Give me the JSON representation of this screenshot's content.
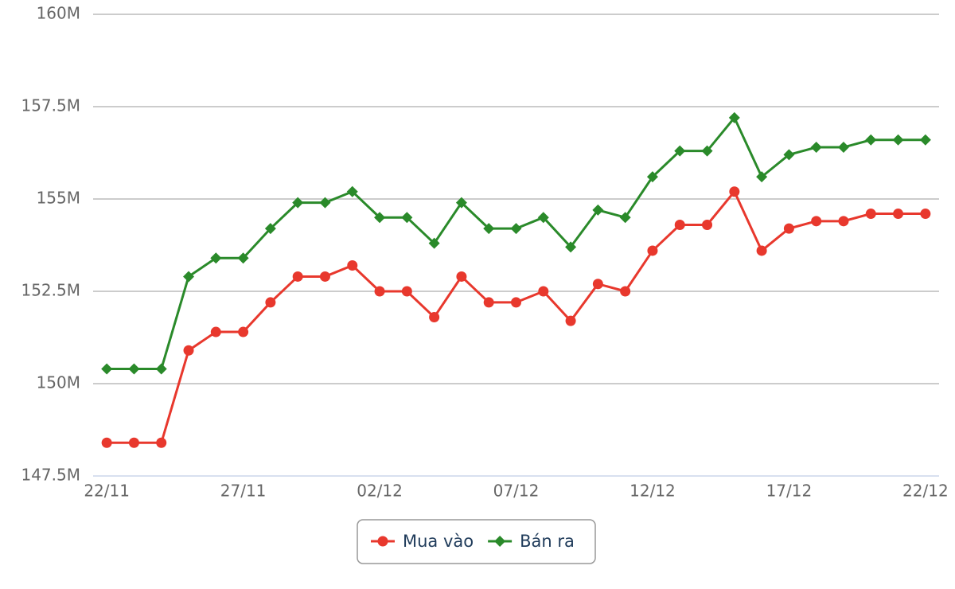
{
  "chart_data": {
    "type": "line",
    "categories": [
      "22/11",
      null,
      null,
      null,
      null,
      "27/11",
      null,
      null,
      null,
      null,
      "02/12",
      null,
      null,
      null,
      null,
      "07/12",
      null,
      null,
      null,
      null,
      "12/12",
      null,
      null,
      null,
      null,
      "17/12",
      null,
      null,
      null,
      null,
      "22/12"
    ],
    "series": [
      {
        "name": "Mua vào",
        "color": "#e8382d",
        "marker": "circle",
        "values": [
          148.4,
          148.4,
          148.4,
          150.9,
          151.4,
          151.4,
          152.2,
          152.9,
          152.9,
          153.2,
          152.5,
          152.5,
          151.8,
          152.9,
          152.2,
          152.2,
          152.5,
          151.7,
          152.7,
          152.5,
          153.6,
          154.3,
          154.3,
          155.2,
          153.6,
          154.2,
          154.4,
          154.4,
          154.6,
          154.6,
          154.6
        ]
      },
      {
        "name": "Bán ra",
        "color": "#2a8a2a",
        "marker": "diamond",
        "values": [
          150.4,
          150.4,
          150.4,
          152.9,
          153.4,
          153.4,
          154.2,
          154.9,
          154.9,
          155.2,
          154.5,
          154.5,
          153.8,
          154.9,
          154.2,
          154.2,
          154.5,
          153.7,
          154.7,
          154.5,
          155.6,
          156.3,
          156.3,
          157.2,
          155.6,
          156.2,
          156.4,
          156.4,
          156.6,
          156.6,
          156.6
        ]
      }
    ],
    "ylim": [
      147.5,
      160
    ],
    "yticks": [
      {
        "value": 147.5,
        "label": "147.5M"
      },
      {
        "value": 150,
        "label": "150M"
      },
      {
        "value": 152.5,
        "label": "152.5M"
      },
      {
        "value": 155,
        "label": "155M"
      },
      {
        "value": 157.5,
        "label": "157.5M"
      },
      {
        "value": 160,
        "label": "160M"
      }
    ],
    "grid": true,
    "legend": "bottom"
  }
}
